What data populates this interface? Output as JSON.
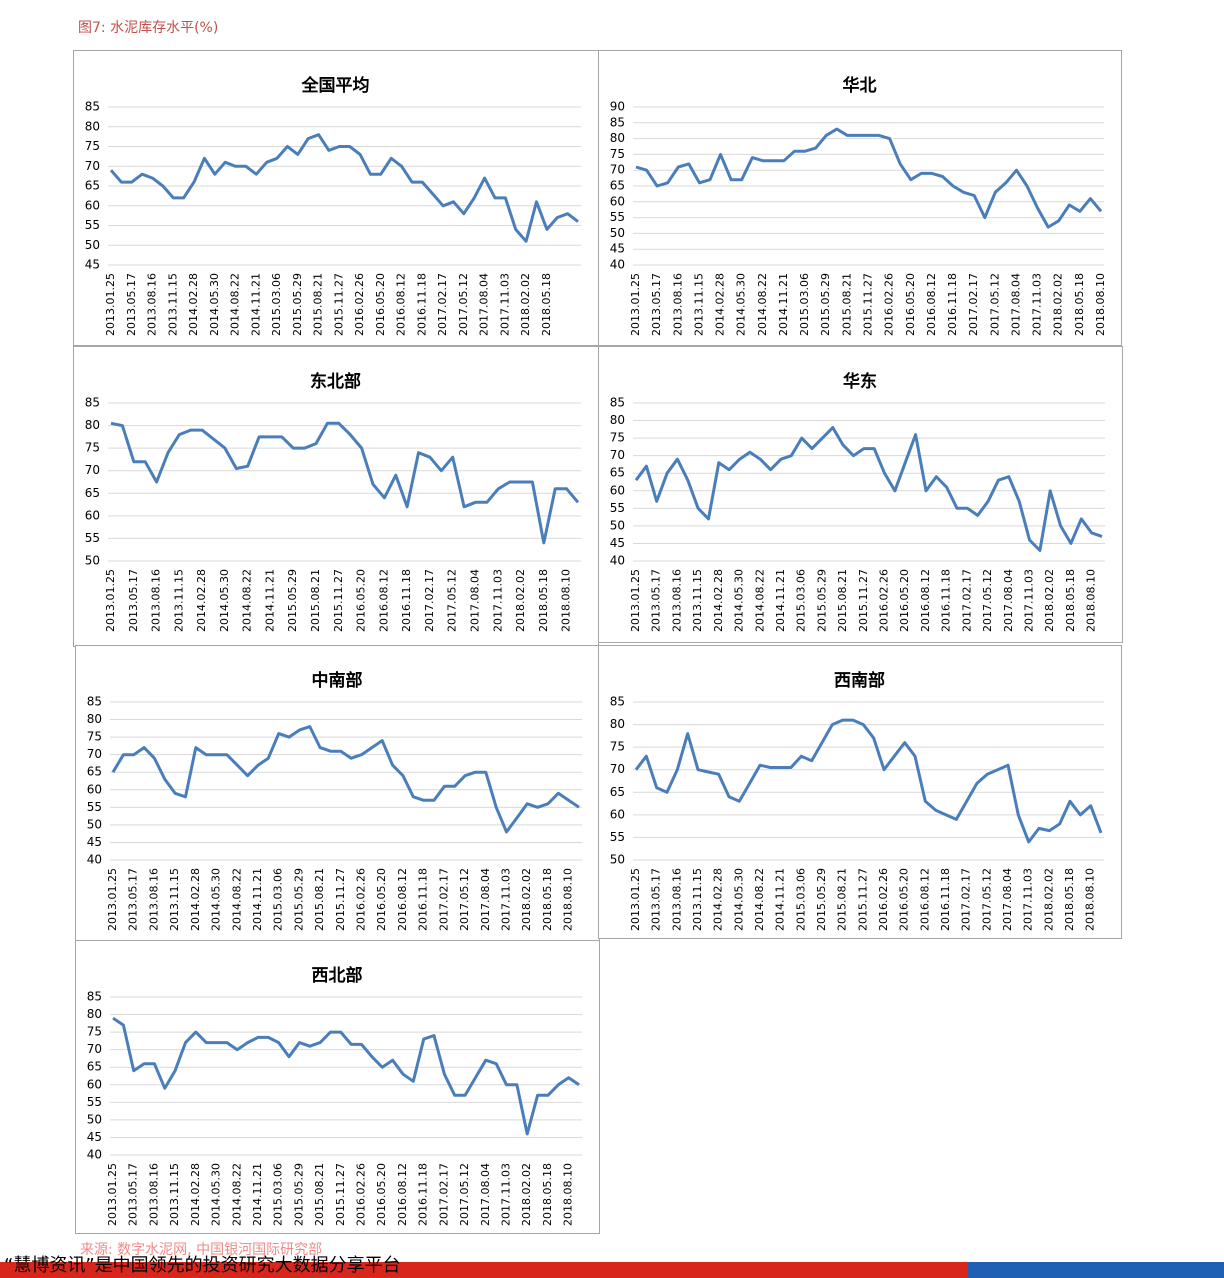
{
  "page_title": "图7: 水泥库存水平(%)",
  "source": "来源: 数字水泥网, 中国银河国际研究部",
  "footer": "“慧博资讯”是中国领先的投资研究大数据分享平台",
  "chart_data": [
    {
      "type": "line",
      "title": "全国平均",
      "color": "#4a7ebb",
      "grid": true,
      "ylim": [
        45,
        85
      ],
      "yticks": [
        45,
        50,
        55,
        60,
        65,
        70,
        75,
        80,
        85
      ],
      "categories": [
        "2013.01.25",
        null,
        "2013.05.17",
        null,
        "2013.08.16",
        null,
        "2013.11.15",
        null,
        "2014.02.28",
        null,
        "2014.05.30",
        null,
        "2014.08.22",
        null,
        "2014.11.21",
        null,
        "2015.03.06",
        null,
        "2015.05.29",
        null,
        "2015.08.21",
        null,
        "2015.11.27",
        null,
        "2016.02.26",
        null,
        "2016.05.20",
        null,
        "2016.08.12",
        null,
        "2016.11.18",
        null,
        "2017.02.17",
        null,
        "2017.05.12",
        null,
        "2017.08.04",
        null,
        "2017.11.03",
        null,
        "2018.02.02",
        null,
        "2018.05.18",
        null,
        null,
        null
      ],
      "values": [
        69,
        66,
        66,
        68,
        67,
        65,
        62,
        62,
        66,
        72,
        68,
        71,
        70,
        70,
        68,
        71,
        72,
        75,
        73,
        77,
        78,
        74,
        75,
        75,
        73,
        68,
        68,
        72,
        70,
        66,
        66,
        63,
        60,
        61,
        58,
        62,
        67,
        62,
        62,
        54,
        51,
        61,
        54,
        57,
        58,
        56
      ]
    },
    {
      "type": "line",
      "title": "华北",
      "color": "#4a7ebb",
      "grid": true,
      "ylim": [
        40,
        90
      ],
      "yticks": [
        40,
        45,
        50,
        55,
        60,
        65,
        70,
        75,
        80,
        85,
        90
      ],
      "categories": [
        "2013.01.25",
        null,
        "2013.05.17",
        null,
        "2013.08.16",
        null,
        "2013.11.15",
        null,
        "2014.02.28",
        null,
        "2014.05.30",
        null,
        "2014.08.22",
        null,
        "2014.11.21",
        null,
        "2015.03.06",
        null,
        "2015.05.29",
        null,
        "2015.08.21",
        null,
        "2015.11.27",
        null,
        "2016.02.26",
        null,
        "2016.05.20",
        null,
        "2016.08.12",
        null,
        "2016.11.18",
        null,
        "2017.02.17",
        null,
        "2017.05.12",
        null,
        "2017.08.04",
        null,
        "2017.11.03",
        null,
        "2018.02.02",
        null,
        "2018.05.18",
        null,
        "2018.08.10"
      ],
      "values": [
        71,
        70,
        65,
        66,
        71,
        72,
        66,
        67,
        75,
        67,
        67,
        74,
        73,
        73,
        73,
        76,
        76,
        77,
        81,
        83,
        81,
        81,
        81,
        81,
        80,
        72,
        67,
        69,
        69,
        68,
        65,
        63,
        62,
        55,
        63,
        66,
        70,
        65,
        58,
        52,
        54,
        59,
        57,
        61,
        57
      ]
    },
    {
      "type": "line",
      "title": "东北部",
      "color": "#4a7ebb",
      "grid": true,
      "ylim": [
        50,
        85
      ],
      "yticks": [
        50,
        55,
        60,
        65,
        70,
        75,
        80,
        85
      ],
      "categories": [
        "2013.01.25",
        null,
        "2013.05.17",
        null,
        "2013.08.16",
        null,
        "2013.11.15",
        null,
        "2014.02.28",
        null,
        "2014.05.30",
        null,
        "2014.08.22",
        null,
        "2014.11.21",
        null,
        "2015.05.29",
        null,
        "2015.08.21",
        null,
        "2015.11.27",
        null,
        "2016.05.20",
        null,
        "2016.08.12",
        null,
        "2016.11.18",
        null,
        "2017.02.17",
        null,
        "2017.05.12",
        null,
        "2017.08.04",
        null,
        "2017.11.03",
        null,
        "2018.02.02",
        null,
        "2018.05.18",
        null,
        "2018.08.10",
        null
      ],
      "values": [
        80.5,
        80,
        72,
        72,
        67.5,
        74,
        78,
        79,
        79,
        77,
        75,
        70.5,
        71,
        77.5,
        77.5,
        77.5,
        75,
        75,
        76,
        80.5,
        80.5,
        78,
        75,
        67,
        64,
        69,
        62,
        74,
        73,
        70,
        73,
        62,
        63,
        63,
        66,
        67.5,
        67.5,
        67.5,
        54,
        66,
        66,
        63
      ]
    },
    {
      "type": "line",
      "title": "华东",
      "color": "#4a7ebb",
      "grid": true,
      "ylim": [
        40,
        85
      ],
      "yticks": [
        40,
        45,
        50,
        55,
        60,
        65,
        70,
        75,
        80,
        85
      ],
      "categories": [
        "2013.01.25",
        null,
        "2013.05.17",
        null,
        "2013.08.16",
        null,
        "2013.11.15",
        null,
        "2014.02.28",
        null,
        "2014.05.30",
        null,
        "2014.08.22",
        null,
        "2014.11.21",
        null,
        "2015.03.06",
        null,
        "2015.05.29",
        null,
        "2015.08.21",
        null,
        "2015.11.27",
        null,
        "2016.02.26",
        null,
        "2016.05.20",
        null,
        "2016.08.12",
        null,
        "2016.11.18",
        null,
        "2017.02.17",
        null,
        "2017.05.12",
        null,
        "2017.08.04",
        null,
        "2017.11.03",
        null,
        "2018.02.02",
        null,
        "2018.05.18",
        null,
        "2018.08.10",
        null
      ],
      "values": [
        63,
        67,
        57,
        65,
        69,
        63,
        55,
        52,
        68,
        66,
        69,
        71,
        69,
        66,
        69,
        70,
        75,
        72,
        75,
        78,
        73,
        70,
        72,
        72,
        65,
        60,
        68,
        76,
        60,
        64,
        61,
        55,
        55,
        53,
        57,
        63,
        64,
        57,
        46,
        43,
        60,
        50,
        45,
        52,
        48,
        47
      ]
    },
    {
      "type": "line",
      "title": "中南部",
      "color": "#4a7ebb",
      "grid": true,
      "ylim": [
        40,
        85
      ],
      "yticks": [
        40,
        45,
        50,
        55,
        60,
        65,
        70,
        75,
        80,
        85
      ],
      "categories": [
        "2013.01.25",
        null,
        "2013.05.17",
        null,
        "2013.08.16",
        null,
        "2013.11.15",
        null,
        "2014.02.28",
        null,
        "2014.05.30",
        null,
        "2014.08.22",
        null,
        "2014.11.21",
        null,
        "2015.03.06",
        null,
        "2015.05.29",
        null,
        "2015.08.21",
        null,
        "2015.11.27",
        null,
        "2016.02.26",
        null,
        "2016.05.20",
        null,
        "2016.08.12",
        null,
        "2016.11.18",
        null,
        "2017.02.17",
        null,
        "2017.05.12",
        null,
        "2017.08.04",
        null,
        "2017.11.03",
        null,
        "2018.02.02",
        null,
        "2018.05.18",
        null,
        "2018.08.10",
        null
      ],
      "values": [
        65,
        70,
        70,
        72,
        69,
        63,
        59,
        58,
        72,
        70,
        70,
        70,
        67,
        64,
        67,
        69,
        76,
        75,
        77,
        78,
        72,
        71,
        71,
        69,
        70,
        72,
        74,
        67,
        64,
        58,
        57,
        57,
        61,
        61,
        64,
        65,
        65,
        55,
        48,
        52,
        56,
        55,
        56,
        59,
        57,
        55
      ]
    },
    {
      "type": "line",
      "title": "西南部",
      "color": "#4a7ebb",
      "grid": true,
      "ylim": [
        50,
        85
      ],
      "yticks": [
        50,
        55,
        60,
        65,
        70,
        75,
        80,
        85
      ],
      "categories": [
        "2013.01.25",
        null,
        "2013.05.17",
        null,
        "2013.08.16",
        null,
        "2013.11.15",
        null,
        "2014.02.28",
        null,
        "2014.05.30",
        null,
        "2014.08.22",
        null,
        "2014.11.21",
        null,
        "2015.03.06",
        null,
        "2015.05.29",
        null,
        "2015.08.21",
        null,
        "2015.11.27",
        null,
        "2016.02.26",
        null,
        "2016.05.20",
        null,
        "2016.08.12",
        null,
        "2016.11.18",
        null,
        "2017.02.17",
        null,
        "2017.05.12",
        null,
        "2017.08.04",
        null,
        "2017.11.03",
        null,
        "2018.02.02",
        null,
        "2018.05.18",
        null,
        "2018.08.10",
        null
      ],
      "values": [
        70,
        73,
        66,
        65,
        70,
        78,
        70,
        69.5,
        69,
        64,
        63,
        67,
        71,
        70.5,
        70.5,
        70.5,
        73,
        72,
        76,
        80,
        81,
        81,
        80,
        77,
        70,
        73,
        76,
        73,
        63,
        61,
        60,
        59,
        63,
        67,
        69,
        70,
        71,
        60,
        54,
        57,
        56.5,
        58,
        63,
        60,
        62,
        56
      ]
    },
    {
      "type": "line",
      "title": "西北部",
      "color": "#4a7ebb",
      "grid": true,
      "ylim": [
        40,
        85
      ],
      "yticks": [
        40,
        45,
        50,
        55,
        60,
        65,
        70,
        75,
        80,
        85
      ],
      "categories": [
        "2013.01.25",
        null,
        "2013.05.17",
        null,
        "2013.08.16",
        null,
        "2013.11.15",
        null,
        "2014.02.28",
        null,
        "2014.05.30",
        null,
        "2014.08.22",
        null,
        "2014.11.21",
        null,
        "2015.03.06",
        null,
        "2015.05.29",
        null,
        "2015.08.21",
        null,
        "2015.11.27",
        null,
        "2016.02.26",
        null,
        "2016.05.20",
        null,
        "2016.08.12",
        null,
        "2016.11.18",
        null,
        "2017.02.17",
        null,
        "2017.05.12",
        null,
        "2017.08.04",
        null,
        "2017.11.03",
        null,
        "2018.02.02",
        null,
        "2018.05.18",
        null,
        "2018.08.10",
        null
      ],
      "values": [
        79,
        77,
        64,
        66,
        66,
        59,
        64,
        72,
        75,
        72,
        72,
        72,
        70,
        72,
        73.5,
        73.5,
        72,
        68,
        72,
        71,
        72,
        75,
        75,
        71.5,
        71.5,
        68,
        65,
        67,
        63,
        61,
        73,
        74,
        63,
        57,
        57,
        62,
        67,
        66,
        60,
        60,
        46,
        57,
        57,
        60,
        62,
        60
      ]
    }
  ]
}
